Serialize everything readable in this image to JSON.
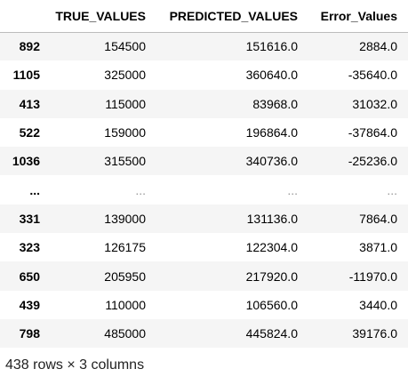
{
  "table": {
    "index_header": "",
    "columns": [
      "TRUE_VALUES",
      "PREDICTED_VALUES",
      "Error_Values"
    ],
    "rows": [
      {
        "index": "892",
        "cells": [
          "154500",
          "151616.0",
          "2884.0"
        ]
      },
      {
        "index": "1105",
        "cells": [
          "325000",
          "360640.0",
          "-35640.0"
        ]
      },
      {
        "index": "413",
        "cells": [
          "115000",
          "83968.0",
          "31032.0"
        ]
      },
      {
        "index": "522",
        "cells": [
          "159000",
          "196864.0",
          "-37864.0"
        ]
      },
      {
        "index": "1036",
        "cells": [
          "315500",
          "340736.0",
          "-25236.0"
        ]
      },
      {
        "index": "...",
        "cells": [
          "...",
          "...",
          "..."
        ]
      },
      {
        "index": "331",
        "cells": [
          "139000",
          "131136.0",
          "7864.0"
        ]
      },
      {
        "index": "323",
        "cells": [
          "126175",
          "122304.0",
          "3871.0"
        ]
      },
      {
        "index": "650",
        "cells": [
          "205950",
          "217920.0",
          "-11970.0"
        ]
      },
      {
        "index": "439",
        "cells": [
          "110000",
          "106560.0",
          "3440.0"
        ]
      },
      {
        "index": "798",
        "cells": [
          "485000",
          "445824.0",
          "39176.0"
        ]
      }
    ]
  },
  "shape_text": "438 rows × 3 columns",
  "colors": {
    "row_stripe": "#f5f5f5",
    "header_border": "#bdbdbd",
    "ellipsis_text": "#999999"
  }
}
